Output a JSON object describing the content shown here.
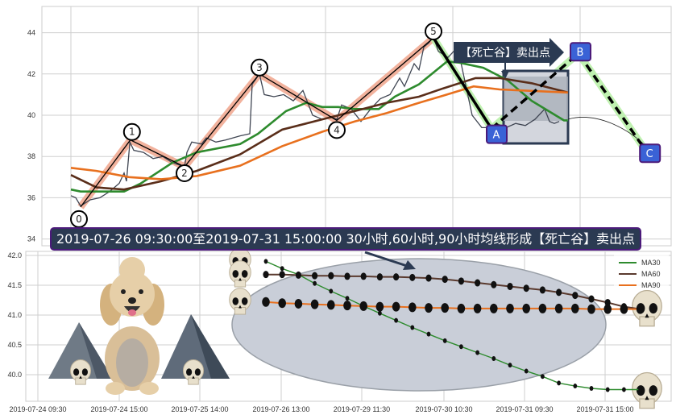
{
  "chart_data": [
    {
      "type": "line",
      "title": "",
      "xlabel": "",
      "ylabel": "",
      "ylim": [
        33.8,
        45.3
      ],
      "yticks": [
        "34",
        "36",
        "38",
        "40",
        "42",
        "44"
      ],
      "grid": true,
      "x_unit": "bar index",
      "price": [
        [
          0,
          36.1
        ],
        [
          1,
          36.0
        ],
        [
          2,
          35.6
        ],
        [
          4,
          35.9
        ],
        [
          6,
          36.0
        ],
        [
          8,
          36.3
        ],
        [
          10,
          36.7
        ],
        [
          11,
          37.2
        ],
        [
          11.5,
          36.8
        ],
        [
          12.2,
          38.7
        ],
        [
          13,
          38.3
        ],
        [
          15,
          38.2
        ],
        [
          17,
          37.9
        ],
        [
          19,
          38.0
        ],
        [
          21,
          37.7
        ],
        [
          23.5,
          37.5
        ],
        [
          24,
          38.2
        ],
        [
          25,
          38.7
        ],
        [
          27,
          38.6
        ],
        [
          28,
          38.9
        ],
        [
          30,
          38.7
        ],
        [
          32,
          38.8
        ],
        [
          35,
          39.0
        ],
        [
          37,
          39.1
        ],
        [
          37.5,
          41.5
        ],
        [
          39,
          42.0
        ],
        [
          40,
          41.0
        ],
        [
          42,
          40.9
        ],
        [
          44,
          41.0
        ],
        [
          46,
          40.7
        ],
        [
          48,
          41.2
        ],
        [
          50,
          40.0
        ],
        [
          52,
          39.8
        ],
        [
          54,
          39.9
        ],
        [
          55,
          39.8
        ],
        [
          56,
          40.5
        ],
        [
          58,
          40.3
        ],
        [
          60,
          39.7
        ],
        [
          62,
          40.3
        ],
        [
          64,
          40.8
        ],
        [
          66,
          41.0
        ],
        [
          68,
          41.8
        ],
        [
          69,
          41.4
        ],
        [
          71,
          42.5
        ],
        [
          72,
          42.2
        ],
        [
          73,
          43.3
        ],
        [
          74,
          43.5
        ],
        [
          75,
          43.8
        ],
        [
          76,
          43.1
        ],
        [
          78,
          42.8
        ],
        [
          80,
          43.3
        ],
        [
          81,
          42.2
        ],
        [
          83,
          40.0
        ],
        [
          85,
          39.4
        ],
        [
          87,
          39.4
        ],
        [
          88,
          39.6
        ],
        [
          90,
          39.4
        ],
        [
          92,
          39.6
        ],
        [
          94,
          39.5
        ],
        [
          96,
          39.8
        ],
        [
          98,
          40.3
        ],
        [
          99,
          39.7
        ],
        [
          100,
          39.6
        ],
        [
          101,
          39.7
        ]
      ],
      "series": [
        {
          "key": "ma30",
          "color": "#2e8b2e",
          "values": [
            [
              0,
              36.4
            ],
            [
              2,
              36.3
            ],
            [
              11,
              36.3
            ],
            [
              14.5,
              36.7
            ],
            [
              21,
              37.7
            ],
            [
              26,
              38.2
            ],
            [
              35,
              38.6
            ],
            [
              38.7,
              39.1
            ],
            [
              44.5,
              40.2
            ],
            [
              48.7,
              40.6
            ],
            [
              52,
              40.4
            ],
            [
              55.3,
              40.4
            ],
            [
              58.7,
              40.3
            ],
            [
              63.7,
              40.3
            ],
            [
              67,
              40.9
            ],
            [
              72,
              41.5
            ],
            [
              77.8,
              42.6
            ],
            [
              80.3,
              42.55
            ],
            [
              85.3,
              42.3
            ],
            [
              90.3,
              41.7
            ],
            [
              95.3,
              40.7
            ],
            [
              102,
              39.75
            ],
            [
              102.8,
              39.75
            ]
          ]
        },
        {
          "key": "ma60",
          "color": "#5a2e1a",
          "values": [
            [
              0,
              37.1
            ],
            [
              5.3,
              36.5
            ],
            [
              11,
              36.4
            ],
            [
              18.7,
              36.8
            ],
            [
              26,
              37.3
            ],
            [
              35,
              38.1
            ],
            [
              43.7,
              39.3
            ],
            [
              52,
              39.8
            ],
            [
              58.7,
              40.2
            ],
            [
              65.3,
              40.6
            ],
            [
              72,
              40.9
            ],
            [
              77,
              41.3
            ],
            [
              83.7,
              41.8
            ],
            [
              88.7,
              41.8
            ],
            [
              95.3,
              41.55
            ],
            [
              102.8,
              41.1
            ]
          ]
        },
        {
          "key": "ma90",
          "color": "#e8701e",
          "values": [
            [
              0,
              37.45
            ],
            [
              5.3,
              37.3
            ],
            [
              12,
              37.0
            ],
            [
              18.7,
              36.9
            ],
            [
              26,
              37.05
            ],
            [
              35,
              37.55
            ],
            [
              43.7,
              38.5
            ],
            [
              52,
              39.2
            ],
            [
              58.7,
              39.7
            ],
            [
              65.3,
              40.1
            ],
            [
              72,
              40.6
            ],
            [
              77,
              40.95
            ],
            [
              83.3,
              41.4
            ],
            [
              88.7,
              41.25
            ],
            [
              102.8,
              41.1
            ]
          ]
        }
      ],
      "wave_points": [
        {
          "label": "0",
          "x": 2,
          "y": 35.55
        },
        {
          "label": "1",
          "x": 12.3,
          "y": 38.8
        },
        {
          "label": "2",
          "x": 23.5,
          "y": 37.5
        },
        {
          "label": "3",
          "x": 39,
          "y": 42.0
        },
        {
          "label": "4",
          "x": 55,
          "y": 39.75
        },
        {
          "label": "5",
          "x": 75,
          "y": 43.75
        }
      ],
      "abc_points": [
        {
          "label": "A",
          "x": 87,
          "y": 39.35
        },
        {
          "label": "B",
          "x": 105,
          "y": 43.0
        },
        {
          "label": "C",
          "x": 118.7,
          "y": 38.35
        }
      ],
      "colors": {
        "wave_highlight": "#f0a58c",
        "abc_highlight": "#b9f0a8",
        "label_box": "#3a62d6",
        "label_border": "#4b1a7a"
      },
      "annotation": "【死亡谷】卖出点"
    },
    {
      "type": "line",
      "title": "",
      "ylim": [
        39.55,
        42.07
      ],
      "yticks": [
        "40.0",
        "40.5",
        "41.0",
        "41.5",
        "42.0"
      ],
      "xticks": [
        "2019-07-24 09:30",
        "2019-07-24 15:00",
        "2019-07-25 14:00",
        "2019-07-26 13:00",
        "2019-07-29 11:30",
        "2019-07-30 10:30",
        "2019-07-31 09:30",
        "2019-07-31 15:00"
      ],
      "grid": true,
      "legend_position": "top-right",
      "series": [
        {
          "name": "MA30",
          "color": "#2e8b2e",
          "values": [
            41.9,
            41.78,
            41.68,
            41.53,
            41.4,
            41.28,
            41.15,
            41.03,
            40.91,
            40.79,
            40.68,
            40.57,
            40.47,
            40.37,
            40.27,
            40.16,
            40.06,
            39.97,
            39.86,
            39.81,
            39.77,
            39.75,
            39.75,
            39.75
          ]
        },
        {
          "name": "MA60",
          "color": "#5a3a2e",
          "values": [
            41.68,
            41.68,
            41.67,
            41.66,
            41.66,
            41.65,
            41.65,
            41.64,
            41.64,
            41.63,
            41.62,
            41.6,
            41.57,
            41.54,
            41.51,
            41.48,
            41.45,
            41.42,
            41.38,
            41.33,
            41.27,
            41.21,
            41.14,
            41.1
          ]
        },
        {
          "name": "MA90",
          "color": "#e8701e",
          "values": [
            41.22,
            41.2,
            41.19,
            41.18,
            41.17,
            41.16,
            41.15,
            41.14,
            41.14,
            41.13,
            41.12,
            41.12,
            41.11,
            41.11,
            41.11,
            41.11,
            41.11,
            41.11,
            41.11,
            41.11,
            41.1,
            41.1,
            41.1,
            41.1
          ]
        }
      ]
    }
  ],
  "caption": "2019-07-26 09:30:00至2019-07-31 15:00:00 30小时,60小时,90小时均线形成【死亡谷】卖出点"
}
